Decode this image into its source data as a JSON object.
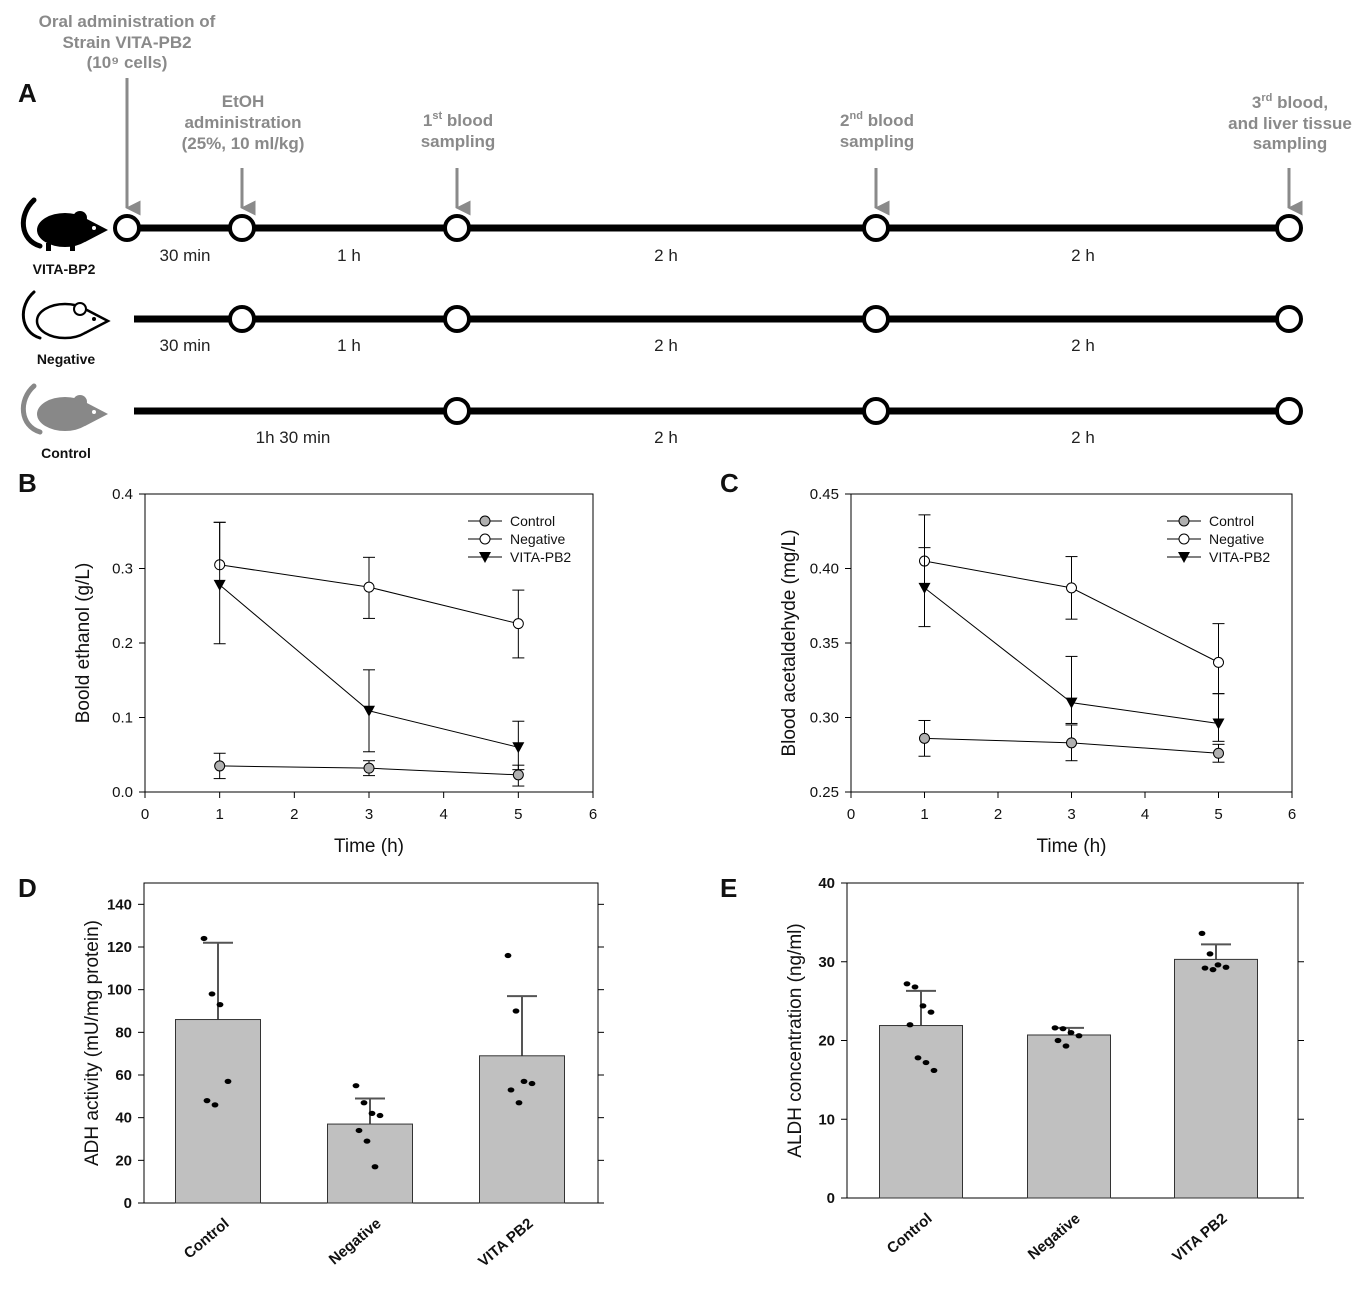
{
  "panel_labels": {
    "a": "A",
    "b": "B",
    "c": "C",
    "d": "D",
    "e": "E"
  },
  "timeline": {
    "top_annotations": [
      {
        "lines": [
          "Oral administration of",
          "Strain VITA-PB2",
          "(10⁹ cells)"
        ]
      },
      {
        "lines": [
          "EtOH",
          "administration",
          "(25%, 10 ml/kg)"
        ]
      },
      {
        "lines": [
          "1st blood",
          "sampling"
        ]
      },
      {
        "lines": [
          "2nd blood",
          "sampling"
        ]
      },
      {
        "lines": [
          "3rd blood,",
          "and liver tissue",
          "sampling"
        ]
      }
    ],
    "groups": [
      {
        "name": "VITA-BP2",
        "durations": [
          "30 min",
          "1 h",
          "2 h",
          "2 h"
        ]
      },
      {
        "name": "Negative",
        "durations": [
          "30 min",
          "1 h",
          "2 h",
          "2 h"
        ]
      },
      {
        "name": "Control",
        "durations": [
          "1h 30 min",
          "2 h",
          "2 h"
        ]
      }
    ],
    "colors": {
      "annotation": "#8a8a8a",
      "line": "#000000",
      "control_mouse": "#888888"
    }
  },
  "chart_data": [
    {
      "panel": "B",
      "type": "line",
      "xlabel": "Time (h)",
      "ylabel": "Boold ethanol (g/L)",
      "xlim": [
        0,
        6
      ],
      "ylim": [
        0,
        0.4
      ],
      "xticks": [
        0,
        1,
        2,
        3,
        4,
        5,
        6
      ],
      "yticks": [
        "0.0",
        "0.1",
        "0.2",
        "0.3",
        "0.4"
      ],
      "legend_position": "top-right",
      "x": [
        1,
        3,
        5
      ],
      "series": [
        {
          "name": "Control",
          "marker": "circle-gray",
          "values": [
            0.035,
            0.032,
            0.023
          ],
          "err_up": [
            0.017,
            0.01,
            0.013
          ],
          "err_down": [
            0.017,
            0.01,
            0.015
          ]
        },
        {
          "name": "Negative",
          "marker": "circle-open",
          "values": [
            0.305,
            0.275,
            0.226
          ],
          "err_up": [
            0.057,
            0.04,
            0.045
          ],
          "err_down": [
            0.0,
            0.042,
            0.046
          ]
        },
        {
          "name": "VITA-PB2",
          "marker": "triangle-down",
          "values": [
            0.278,
            0.109,
            0.06
          ],
          "err_up": [
            0.084,
            0.055,
            0.035
          ],
          "err_down": [
            0.079,
            0.055,
            0.03
          ]
        }
      ]
    },
    {
      "panel": "C",
      "type": "line",
      "xlabel": "Time (h)",
      "ylabel": "Blood acetaldehyde (mg/L)",
      "xlim": [
        0,
        6
      ],
      "ylim": [
        0.25,
        0.45
      ],
      "xticks": [
        0,
        1,
        2,
        3,
        4,
        5,
        6
      ],
      "yticks": [
        "0.25",
        "0.30",
        "0.35",
        "0.40",
        "0.45"
      ],
      "legend_position": "top-right",
      "x": [
        1,
        3,
        5
      ],
      "series": [
        {
          "name": "Control",
          "marker": "circle-gray",
          "values": [
            0.286,
            0.283,
            0.276
          ],
          "err_up": [
            0.012,
            0.012,
            0.006
          ],
          "err_down": [
            0.012,
            0.012,
            0.006
          ]
        },
        {
          "name": "Negative",
          "marker": "circle-open",
          "values": [
            0.405,
            0.387,
            0.337
          ],
          "err_up": [
            0.031,
            0.021,
            0.026
          ],
          "err_down": [
            0.0,
            0.021,
            0.021
          ]
        },
        {
          "name": "VITA-PB2",
          "marker": "triangle-down",
          "values": [
            0.387,
            0.31,
            0.296
          ],
          "err_up": [
            0.027,
            0.031,
            0.02
          ],
          "err_down": [
            0.026,
            0.014,
            0.012
          ]
        }
      ]
    },
    {
      "panel": "D",
      "type": "bar",
      "ylabel": "ADH activity (mU/mg protein)",
      "ylim": [
        0,
        150
      ],
      "yticks": [
        0,
        20,
        40,
        60,
        80,
        100,
        120,
        140
      ],
      "categories": [
        "Control",
        "Negative",
        "VITA PB2"
      ],
      "values": [
        86,
        37,
        69
      ],
      "err_up": [
        36,
        12,
        28
      ],
      "points": [
        [
          124,
          98,
          93,
          57,
          48,
          46
        ],
        [
          55,
          47,
          42,
          41,
          34,
          29,
          17
        ],
        [
          116,
          90,
          57,
          56,
          53,
          47
        ]
      ],
      "bar_color": "#c0c0c0"
    },
    {
      "panel": "E",
      "type": "bar",
      "ylabel": "ALDH concentration (ng/ml)",
      "ylim": [
        0,
        40
      ],
      "yticks": [
        0,
        10,
        20,
        30,
        40
      ],
      "categories": [
        "Control",
        "Negative",
        "VITA PB2"
      ],
      "values": [
        21.9,
        20.7,
        30.3
      ],
      "err_up": [
        4.4,
        0.9,
        1.9
      ],
      "points": [
        [
          27.2,
          26.8,
          24.4,
          23.6,
          22.0,
          17.8,
          17.2,
          16.2
        ],
        [
          21.6,
          21.5,
          21.0,
          20.6,
          20.0,
          19.3
        ],
        [
          33.6,
          31.0,
          29.6,
          29.3,
          29.2,
          29.0
        ]
      ],
      "bar_color": "#c0c0c0"
    }
  ]
}
